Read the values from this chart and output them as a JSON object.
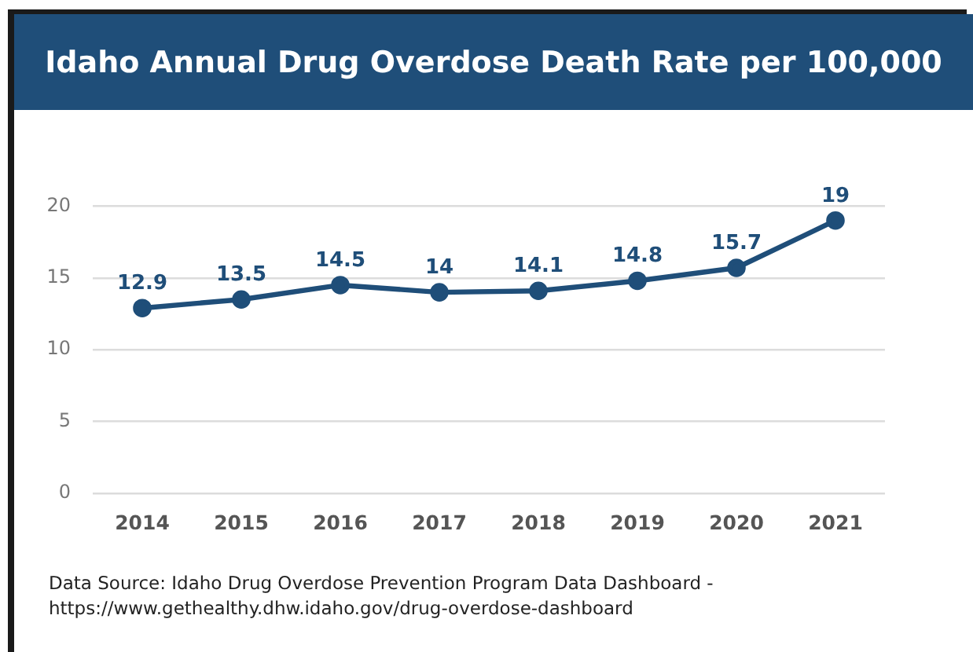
{
  "chart_data": {
    "type": "line",
    "title": "Idaho Annual Drug Overdose Death Rate per 100,000",
    "categories": [
      "2014",
      "2015",
      "2016",
      "2017",
      "2018",
      "2019",
      "2020",
      "2021"
    ],
    "values": [
      12.9,
      13.5,
      14.5,
      14,
      14.1,
      14.8,
      15.7,
      19
    ],
    "color": "#1f4e79",
    "ylim": [
      0,
      20
    ],
    "yticks": [
      0,
      5,
      10,
      15,
      20
    ],
    "grid": "y",
    "legend": false,
    "marker": "circle",
    "line_style": "solid",
    "data_labels": true,
    "annotations": [
      "Data Source: Idaho Drug Overdose Prevention Program Data Dashboard - https://www.gethealthy.dhw.idaho.gov/drug-overdose-dashboard"
    ]
  }
}
